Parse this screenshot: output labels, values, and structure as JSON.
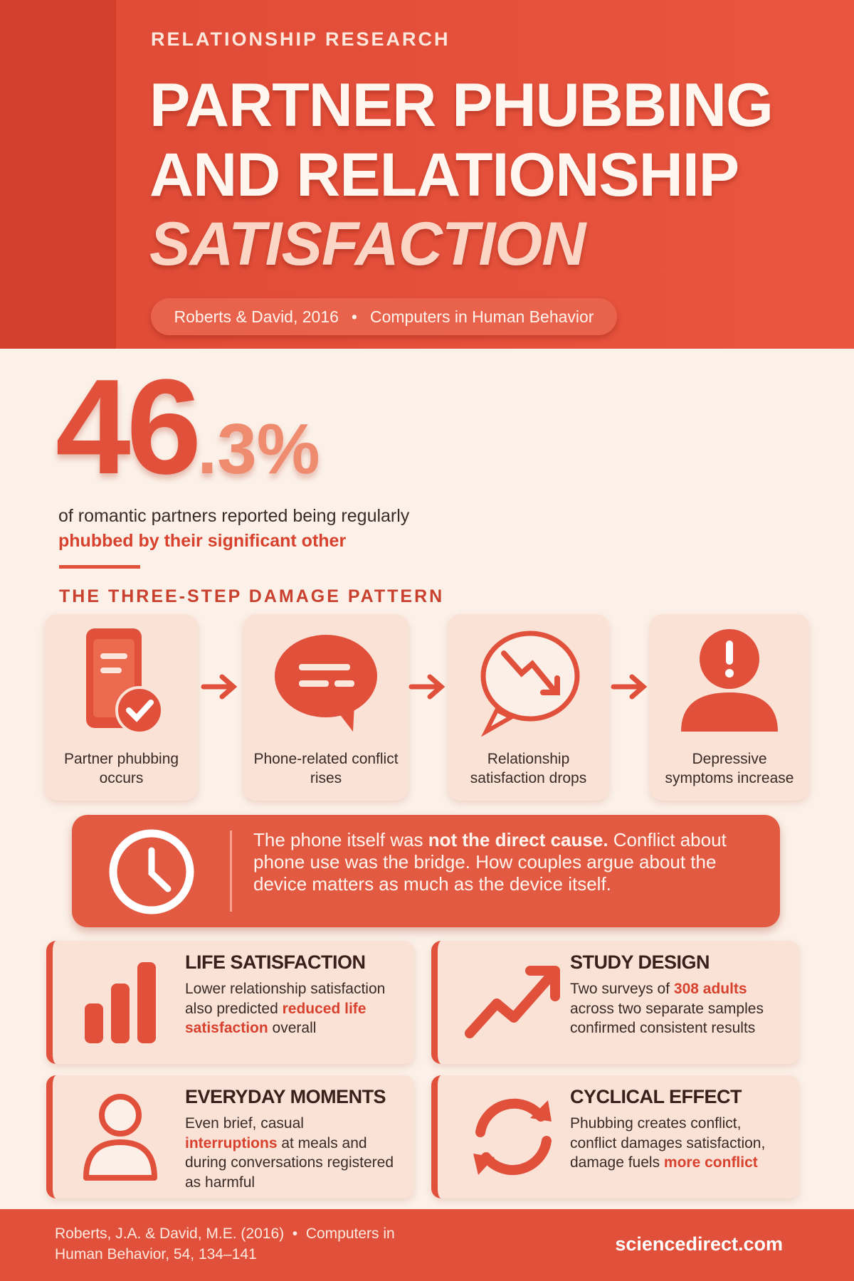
{
  "header": {
    "kicker": "RELATIONSHIP RESEARCH",
    "title_lines": [
      "PARTNER PHUBBING",
      "AND RELATIONSHIP"
    ],
    "title_emphasis": "SATISFACTION",
    "pill": {
      "authors": "Roberts & David, 2016",
      "separator": "•",
      "journal": "Computers in Human Behavior"
    }
  },
  "stat": {
    "whole": "46",
    "fraction": ".3%",
    "caption": "of romantic partners reported being regularly",
    "caption_emphasis": "phubbed by their significant other"
  },
  "section_title": "THE THREE-STEP DAMAGE PATTERN",
  "steps": [
    "Partner phubbing occurs",
    "Phone-related conflict rises",
    "Relationship satisfaction drops",
    "Depressive symptoms increase"
  ],
  "callout": [
    {
      "text": "The phone itself was "
    },
    {
      "text": "not the direct cause.",
      "em": true
    },
    {
      "text": " Conflict about phone use was the bridge. How couples argue about the device matters as much as the device itself."
    }
  ],
  "cards": [
    {
      "title": "LIFE SATISFACTION",
      "text": [
        {
          "text": "Lower relationship satisfaction also predicted "
        },
        {
          "text": "reduced life satisfaction",
          "em": true
        },
        {
          "text": " overall"
        }
      ]
    },
    {
      "title": "STUDY DESIGN",
      "text": [
        {
          "text": "Two surveys of "
        },
        {
          "text": "308 adults",
          "em": true
        },
        {
          "text": " across two separate samples confirmed consistent results"
        }
      ]
    },
    {
      "title": "EVERYDAY MOMENTS",
      "text": [
        {
          "text": "Even brief, casual "
        },
        {
          "text": "interruptions",
          "em": true
        },
        {
          "text": " at meals and during conversations registered as harmful"
        }
      ]
    },
    {
      "title": "CYCLICAL EFFECT",
      "text": [
        {
          "text": "Phubbing creates conflict, conflict damages satisfaction, damage fuels "
        },
        {
          "text": "more conflict",
          "em": true
        }
      ]
    }
  ],
  "footer": {
    "citation": "Roberts, J.A. & David, M.E. (2016)",
    "separator": "•",
    "journal": "Computers in Human Behavior, 54, 134–141",
    "site": "sciencedirect.com"
  }
}
